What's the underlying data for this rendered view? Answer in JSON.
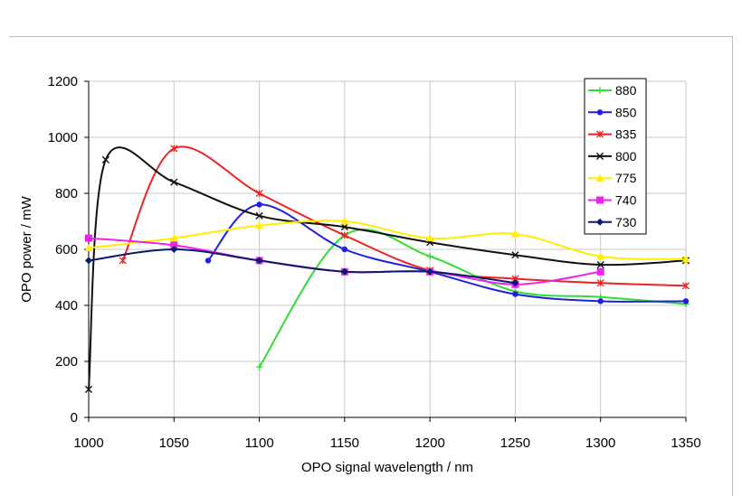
{
  "chart_data": {
    "type": "line",
    "title": "",
    "xlabel": "OPO signal wavelength / nm",
    "ylabel": "OPO power / mW",
    "xlim": [
      1000,
      1350
    ],
    "ylim": [
      0,
      1200
    ],
    "xticks": [
      1000,
      1050,
      1100,
      1150,
      1200,
      1250,
      1300,
      1350
    ],
    "yticks": [
      0,
      200,
      400,
      600,
      800,
      1000,
      1200
    ],
    "grid": true,
    "legend_position": "top-right",
    "series": [
      {
        "name": "880",
        "color": "#33dd33",
        "marker": "plus",
        "x": [
          1100,
          1150,
          1200,
          1250,
          1300,
          1350
        ],
        "y": [
          180,
          650,
          575,
          450,
          430,
          405
        ]
      },
      {
        "name": "850",
        "color": "#1f1fe0",
        "marker": "circle",
        "x": [
          1070,
          1100,
          1150,
          1200,
          1250,
          1300,
          1350
        ],
        "y": [
          560,
          760,
          600,
          520,
          440,
          415,
          415
        ]
      },
      {
        "name": "835",
        "color": "#ee2222",
        "marker": "star",
        "x": [
          1020,
          1050,
          1100,
          1150,
          1200,
          1250,
          1300,
          1350
        ],
        "y": [
          560,
          960,
          800,
          650,
          525,
          495,
          480,
          470
        ]
      },
      {
        "name": "800",
        "color": "#111111",
        "marker": "x",
        "x": [
          1000,
          1010,
          1050,
          1100,
          1150,
          1200,
          1250,
          1300,
          1350
        ],
        "y": [
          100,
          920,
          840,
          720,
          680,
          625,
          580,
          545,
          560
        ]
      },
      {
        "name": "775",
        "color": "#ffee00",
        "marker": "triangle",
        "x": [
          1000,
          1050,
          1100,
          1150,
          1200,
          1250,
          1300,
          1350
        ],
        "y": [
          605,
          640,
          685,
          700,
          640,
          655,
          575,
          565
        ]
      },
      {
        "name": "740",
        "color": "#ee22ee",
        "marker": "square",
        "x": [
          1000,
          1050,
          1100,
          1150,
          1200,
          1250,
          1300
        ],
        "y": [
          640,
          615,
          560,
          520,
          520,
          475,
          520
        ]
      },
      {
        "name": "730",
        "color": "#0a1a70",
        "marker": "diamond",
        "x": [
          1000,
          1050,
          1100,
          1150,
          1200,
          1250
        ],
        "y": [
          560,
          600,
          560,
          520,
          520,
          480
        ]
      }
    ]
  }
}
